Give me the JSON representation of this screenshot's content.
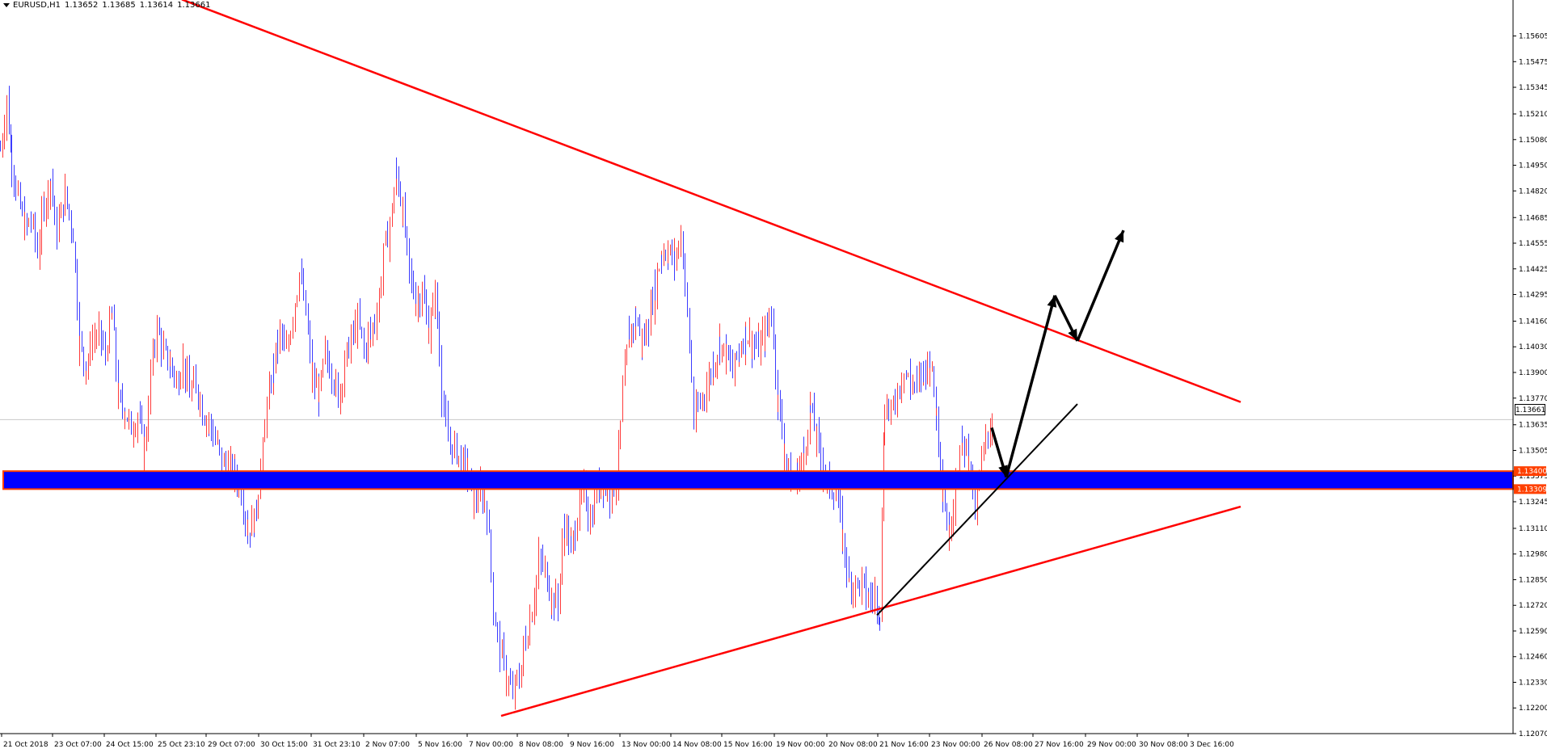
{
  "header": {
    "symbol": "EURUSD,H1",
    "open": "1.13652",
    "high": "1.13685",
    "low": "1.13614",
    "close": "1.13661"
  },
  "current_price": "1.13661",
  "colors": {
    "bull": "#ff3b3b",
    "bear": "#3b3bff",
    "trendline": "#ff0000",
    "zone_fill": "#0000ff",
    "zone_border": "#ff4000",
    "projection": "#000000",
    "axis": "#000000",
    "background": "#ffffff"
  },
  "chart_data": {
    "type": "candlestick",
    "symbol": "EURUSD",
    "timeframe": "H1",
    "ylim": [
      1.1207,
      1.1573
    ],
    "y_ticks": [
      "1.15605",
      "1.15475",
      "1.15345",
      "1.15210",
      "1.15080",
      "1.14950",
      "1.14820",
      "1.14685",
      "1.14555",
      "1.14425",
      "1.14295",
      "1.14160",
      "1.14030",
      "1.13900",
      "1.13770",
      "1.13635",
      "1.13505",
      "1.13375",
      "1.13245",
      "1.13110",
      "1.12980",
      "1.12850",
      "1.12720",
      "1.12590",
      "1.12460",
      "1.12330",
      "1.12200",
      "1.12070"
    ],
    "x_labels": [
      "21 Oct 2018",
      "23 Oct 07:00",
      "24 Oct 15:00",
      "25 Oct 23:10",
      "29 Oct 07:00",
      "30 Oct 15:00",
      "31 Oct 23:10",
      "2 Nov 07:00",
      "5 Nov 16:00",
      "7 Nov 00:00",
      "8 Nov 08:00",
      "9 Nov 16:00",
      "13 Nov 00:00",
      "14 Nov 08:00",
      "15 Nov 16:00",
      "19 Nov 00:00",
      "20 Nov 08:00",
      "21 Nov 16:00",
      "23 Nov 00:00",
      "26 Nov 08:00",
      "27 Nov 16:00",
      "29 Nov 00:00",
      "30 Nov 08:00",
      "3 Dec 16:00"
    ],
    "close_path": [
      [
        0,
        1.1503
      ],
      [
        8,
        1.1528
      ],
      [
        14,
        1.1497
      ],
      [
        22,
        1.1478
      ],
      [
        30,
        1.1463
      ],
      [
        38,
        1.1467
      ],
      [
        46,
        1.1452
      ],
      [
        54,
        1.1475
      ],
      [
        62,
        1.1487
      ],
      [
        70,
        1.1462
      ],
      [
        80,
        1.148
      ],
      [
        90,
        1.146
      ],
      [
        98,
        1.1403
      ],
      [
        106,
        1.1393
      ],
      [
        114,
        1.1407
      ],
      [
        122,
        1.141
      ],
      [
        130,
        1.14
      ],
      [
        138,
        1.142
      ],
      [
        146,
        1.1375
      ],
      [
        154,
        1.137
      ],
      [
        162,
        1.1362
      ],
      [
        170,
        1.1368
      ],
      [
        178,
        1.135
      ],
      [
        186,
        1.139
      ],
      [
        194,
        1.1412
      ],
      [
        202,
        1.14
      ],
      [
        210,
        1.1395
      ],
      [
        218,
        1.1385
      ],
      [
        226,
        1.1395
      ],
      [
        234,
        1.138
      ],
      [
        242,
        1.1385
      ],
      [
        250,
        1.137
      ],
      [
        258,
        1.1365
      ],
      [
        266,
        1.1355
      ],
      [
        274,
        1.1345
      ],
      [
        282,
        1.1342
      ],
      [
        290,
        1.1338
      ],
      [
        298,
        1.133
      ],
      [
        306,
        1.131
      ],
      [
        314,
        1.1315
      ],
      [
        322,
        1.134
      ],
      [
        330,
        1.137
      ],
      [
        338,
        1.1395
      ],
      [
        346,
        1.141
      ],
      [
        354,
        1.14
      ],
      [
        362,
        1.142
      ],
      [
        370,
        1.144
      ],
      [
        378,
        1.142
      ],
      [
        386,
        1.1385
      ],
      [
        394,
        1.138
      ],
      [
        402,
        1.1398
      ],
      [
        410,
        1.139
      ],
      [
        418,
        1.1378
      ],
      [
        426,
        1.1395
      ],
      [
        434,
        1.1408
      ],
      [
        442,
        1.1415
      ],
      [
        450,
        1.1402
      ],
      [
        458,
        1.141
      ],
      [
        466,
        1.142
      ],
      [
        474,
        1.145
      ],
      [
        482,
        1.1465
      ],
      [
        490,
        1.1492
      ],
      [
        498,
        1.147
      ],
      [
        506,
        1.144
      ],
      [
        514,
        1.1425
      ],
      [
        522,
        1.143
      ],
      [
        530,
        1.141
      ],
      [
        538,
        1.143
      ],
      [
        546,
        1.138
      ],
      [
        554,
        1.1355
      ],
      [
        562,
        1.1352
      ],
      [
        570,
        1.1345
      ],
      [
        578,
        1.134
      ],
      [
        586,
        1.1325
      ],
      [
        594,
        1.133
      ],
      [
        602,
        1.132
      ],
      [
        610,
        1.127
      ],
      [
        618,
        1.125
      ],
      [
        626,
        1.1235
      ],
      [
        634,
        1.1228
      ],
      [
        642,
        1.1236
      ],
      [
        650,
        1.1255
      ],
      [
        658,
        1.127
      ],
      [
        666,
        1.1295
      ],
      [
        674,
        1.129
      ],
      [
        682,
        1.1275
      ],
      [
        690,
        1.1275
      ],
      [
        698,
        1.1315
      ],
      [
        706,
        1.13
      ],
      [
        714,
        1.1318
      ],
      [
        722,
        1.133
      ],
      [
        730,
        1.1315
      ],
      [
        738,
        1.133
      ],
      [
        746,
        1.1335
      ],
      [
        754,
        1.1328
      ],
      [
        762,
        1.1335
      ],
      [
        770,
        1.138
      ],
      [
        778,
        1.141
      ],
      [
        786,
        1.1418
      ],
      [
        794,
        1.1405
      ],
      [
        802,
        1.1415
      ],
      [
        810,
        1.1435
      ],
      [
        818,
        1.145
      ],
      [
        826,
        1.1452
      ],
      [
        834,
        1.1446
      ],
      [
        842,
        1.146
      ],
      [
        850,
        1.142
      ],
      [
        858,
        1.1365
      ],
      [
        866,
        1.1375
      ],
      [
        874,
        1.1383
      ],
      [
        882,
        1.1395
      ],
      [
        890,
        1.1405
      ],
      [
        898,
        1.1398
      ],
      [
        906,
        1.139
      ],
      [
        914,
        1.1402
      ],
      [
        922,
        1.141
      ],
      [
        930,
        1.1405
      ],
      [
        938,
        1.1402
      ],
      [
        946,
        1.141
      ],
      [
        954,
        1.142
      ],
      [
        962,
        1.1375
      ],
      [
        970,
        1.135
      ],
      [
        978,
        1.1333
      ],
      [
        986,
        1.1338
      ],
      [
        994,
        1.135
      ],
      [
        1002,
        1.1372
      ],
      [
        1010,
        1.1355
      ],
      [
        1018,
        1.134
      ],
      [
        1026,
        1.1332
      ],
      [
        1034,
        1.133
      ],
      [
        1042,
        1.1305
      ],
      [
        1050,
        1.1285
      ],
      [
        1058,
        1.1282
      ],
      [
        1066,
        1.1283
      ],
      [
        1074,
        1.1275
      ],
      [
        1082,
        1.1278
      ],
      [
        1088,
        1.127
      ],
      [
        1094,
        1.1375
      ],
      [
        1102,
        1.1368
      ],
      [
        1110,
        1.1382
      ],
      [
        1118,
        1.139
      ],
      [
        1126,
        1.1385
      ],
      [
        1134,
        1.1383
      ],
      [
        1142,
        1.1392
      ],
      [
        1150,
        1.1395
      ],
      [
        1158,
        1.137
      ],
      [
        1166,
        1.133
      ],
      [
        1174,
        1.1305
      ],
      [
        1182,
        1.1338
      ],
      [
        1190,
        1.1355
      ],
      [
        1198,
        1.1348
      ],
      [
        1206,
        1.132
      ],
      [
        1214,
        1.1345
      ],
      [
        1222,
        1.136
      ],
      [
        1228,
        1.1366
      ]
    ],
    "resistance_zone": {
      "low": 1.13309,
      "high": 1.134
    },
    "annotations": [
      {
        "type": "trendline",
        "label": "descending resistance",
        "points": [
          [
            225,
            1.1579
          ],
          [
            1535,
            1.1375
          ]
        ]
      },
      {
        "type": "trendline",
        "label": "ascending support",
        "points": [
          [
            620,
            1.1216
          ],
          [
            1535,
            1.1322
          ]
        ]
      },
      {
        "type": "trendline",
        "label": "rising support",
        "points": [
          [
            1085,
            1.1267
          ],
          [
            1333,
            1.1374
          ]
        ]
      },
      {
        "type": "arrow",
        "label": "projected path",
        "points": [
          [
            1227,
            1.1362
          ],
          [
            1245,
            1.1337
          ],
          [
            1305,
            1.1429
          ],
          [
            1333,
            1.1406
          ],
          [
            1390,
            1.1462
          ]
        ]
      }
    ]
  }
}
